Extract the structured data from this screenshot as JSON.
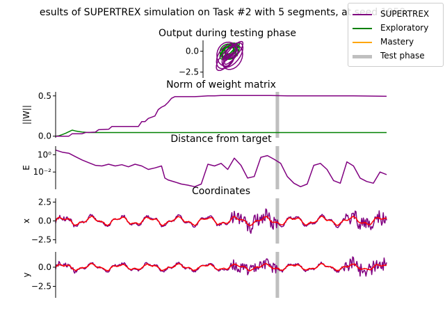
{
  "figure_title": "esults of SUPERTREX simulation on Task #2 with 5 segments, at seed 1958",
  "colors": {
    "supertrex": "#800080",
    "exploratory": "#008000",
    "mastery": "#ffa500",
    "test_phase": "#bfbfbf",
    "target": "#ff0000"
  },
  "legend": [
    {
      "label": "SUPERTREX",
      "color": "#800080",
      "width": 2
    },
    {
      "label": "Exploratory",
      "color": "#008000",
      "width": 2
    },
    {
      "label": "Mastery",
      "color": "#ffa500",
      "width": 2
    },
    {
      "label": "Test phase",
      "color": "#bfbfbf",
      "width": 5
    }
  ],
  "chart_data": [
    {
      "type": "line",
      "title": "Output during testing phase",
      "xlabel": "",
      "ylabel": "",
      "yticks": [
        "0.0",
        "−2.5"
      ],
      "ytick_values": [
        0.0,
        -2.5
      ],
      "ylim": [
        -3.2,
        1.3
      ],
      "xlim": [
        -3.2,
        3.2
      ],
      "series": [
        {
          "color": "#008000",
          "shape": "target-loops",
          "center": [
            0.3,
            0.0
          ],
          "radius": [
            1.6,
            1.1
          ]
        },
        {
          "color": "#800080",
          "shape": "output-loops",
          "center": [
            0.3,
            -0.6
          ],
          "radius": [
            2.2,
            2.0
          ]
        }
      ]
    },
    {
      "type": "line",
      "title": "Norm of weight matrix",
      "xlabel": "",
      "ylabel": "||W||",
      "yticks": [
        "0.5",
        "0.0"
      ],
      "ytick_values": [
        0.5,
        0.0
      ],
      "ylim": [
        -0.02,
        0.55
      ],
      "xlim": [
        0,
        100
      ],
      "test_phase_x": 67,
      "series": [
        {
          "color": "#008000",
          "x": [
            0,
            1,
            2,
            3,
            4,
            5,
            6,
            7,
            8,
            9,
            10,
            12,
            100
          ],
          "y": [
            0.0,
            0.005,
            0.02,
            0.035,
            0.055,
            0.075,
            0.065,
            0.058,
            0.052,
            0.048,
            0.045,
            0.045,
            0.045
          ]
        },
        {
          "color": "#800080",
          "x": [
            0,
            4,
            5,
            8,
            9,
            12,
            13,
            16,
            17,
            25,
            26,
            27,
            28,
            30,
            31,
            32,
            33,
            34,
            35,
            36,
            40,
            42,
            44,
            46,
            48,
            50,
            55,
            60,
            65,
            70,
            75,
            80,
            90,
            100
          ],
          "y": [
            0.0,
            0.0,
            0.03,
            0.03,
            0.045,
            0.05,
            0.08,
            0.085,
            0.12,
            0.12,
            0.18,
            0.18,
            0.22,
            0.25,
            0.33,
            0.36,
            0.38,
            0.42,
            0.47,
            0.49,
            0.49,
            0.49,
            0.495,
            0.5,
            0.5,
            0.505,
            0.505,
            0.505,
            0.505,
            0.5,
            0.5,
            0.5,
            0.5,
            0.495
          ]
        }
      ]
    },
    {
      "type": "line",
      "title": "Distance from target",
      "xlabel": "",
      "ylabel": "E",
      "yscale": "log",
      "yticks": [
        "10⁰",
        "10⁻²"
      ],
      "ytick_values": [
        1.0,
        0.01
      ],
      "ylim": [
        0.0001,
        10
      ],
      "xlim": [
        0,
        100
      ],
      "test_phase_x": 67,
      "series": [
        {
          "color": "#800080",
          "x": [
            0,
            2,
            4,
            6,
            8,
            10,
            12,
            14,
            16,
            18,
            20,
            22,
            24,
            26,
            28,
            30,
            32,
            33,
            34,
            36,
            38,
            40,
            42,
            44,
            46,
            48,
            50,
            52,
            54,
            56,
            58,
            60,
            62,
            64,
            66,
            68,
            70,
            72,
            74,
            76,
            78,
            80,
            82,
            84,
            86,
            88,
            90,
            92,
            94,
            96,
            98,
            100
          ],
          "y": [
            3.5,
            2.0,
            1.5,
            0.6,
            0.25,
            0.12,
            0.06,
            0.05,
            0.08,
            0.05,
            0.07,
            0.04,
            0.08,
            0.05,
            0.02,
            0.03,
            0.05,
            0.002,
            0.0012,
            0.0007,
            0.0004,
            0.0003,
            0.0002,
            0.0004,
            0.08,
            0.05,
            0.1,
            0.02,
            0.4,
            0.06,
            0.002,
            0.003,
            0.5,
            0.8,
            0.3,
            0.1,
            0.003,
            0.0005,
            0.0002,
            0.0004,
            0.06,
            0.1,
            0.02,
            0.001,
            0.0005,
            0.15,
            0.05,
            0.002,
            0.0008,
            0.0005,
            0.01,
            0.005
          ]
        }
      ]
    },
    {
      "type": "line",
      "title": "Coordinates",
      "xlabel": "",
      "ylabel": "x",
      "yticks": [
        "2.5",
        "0.0",
        "−2.5"
      ],
      "ytick_values": [
        2.5,
        0.0,
        -2.5
      ],
      "ylim": [
        -3.0,
        3.0
      ],
      "xlim": [
        0,
        100
      ],
      "test_phase_x": 67,
      "series": [
        {
          "color": "#800080",
          "kind": "noisy-output",
          "amplitude": 0.8,
          "noise_zones": [
            [
              53,
              67
            ],
            [
              87,
              100
            ]
          ]
        },
        {
          "color": "#ff0000",
          "kind": "target",
          "amplitude": 0.8
        }
      ]
    },
    {
      "type": "line",
      "title": "",
      "xlabel": "",
      "ylabel": "y",
      "yticks": [
        "0.0",
        "−2.5"
      ],
      "ytick_values": [
        0.0,
        -2.5
      ],
      "ylim": [
        -4.0,
        2.0
      ],
      "xlim": [
        0,
        100
      ],
      "test_phase_x": 67,
      "series": [
        {
          "color": "#800080",
          "kind": "noisy-output",
          "amplitude": 0.6,
          "noise_zones": [
            [
              53,
              67
            ],
            [
              87,
              100
            ]
          ]
        },
        {
          "color": "#ff0000",
          "kind": "target",
          "amplitude": 0.6
        }
      ]
    }
  ]
}
